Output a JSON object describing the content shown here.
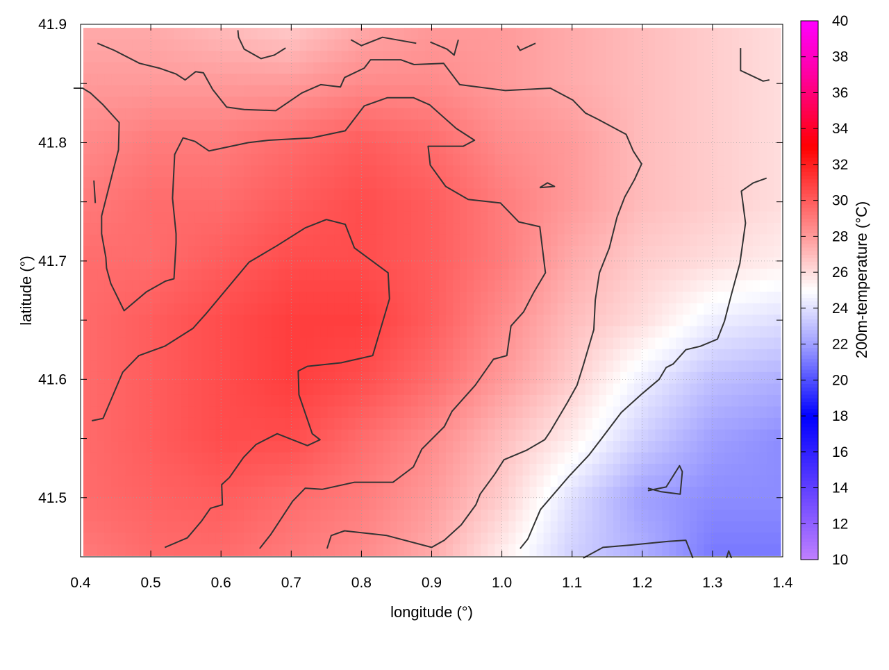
{
  "chart_data": {
    "type": "heatmap",
    "title": "",
    "xlabel": "longitude (°)",
    "ylabel": "latitude (°)",
    "colorbar_label": "200m-temperature (°C)",
    "xlim": [
      0.4,
      1.4
    ],
    "ylim": [
      41.45,
      41.9
    ],
    "x_ticks": [
      "0.4",
      "0.5",
      "0.6",
      "0.7",
      "0.8",
      "0.9",
      "1.0",
      "1.1",
      "1.2",
      "1.3",
      "1.4"
    ],
    "y_ticks": [
      "41.5",
      "41.6",
      "41.7",
      "41.8",
      "41.9"
    ],
    "colorbar_range": [
      10,
      40
    ],
    "colorbar_ticks": [
      "10",
      "12",
      "14",
      "16",
      "18",
      "20",
      "22",
      "24",
      "26",
      "28",
      "30",
      "32",
      "34",
      "36",
      "38",
      "40"
    ],
    "grid": true,
    "colormap": [
      {
        "value": 10,
        "color": "#c080ff"
      },
      {
        "value": 14,
        "color": "#6040ff"
      },
      {
        "value": 18,
        "color": "#0000ff"
      },
      {
        "value": 22,
        "color": "#a0a0ff"
      },
      {
        "value": 25,
        "color": "#ffffff"
      },
      {
        "value": 28,
        "color": "#ff9a9a"
      },
      {
        "value": 33,
        "color": "#ff0000"
      },
      {
        "value": 37,
        "color": "#ff00a0"
      },
      {
        "value": 40,
        "color": "#ff00ff"
      }
    ],
    "field_grid": {
      "x": [
        0.4,
        0.5,
        0.6,
        0.7,
        0.8,
        0.9,
        1.0,
        1.1,
        1.2,
        1.3,
        1.4
      ],
      "y": [
        41.45,
        41.5,
        41.55,
        41.6,
        41.65,
        41.7,
        41.75,
        41.8,
        41.85,
        41.9
      ],
      "z": [
        [
          29.0,
          29.5,
          29.5,
          29.0,
          28.5,
          27.5,
          25.5,
          23.5,
          22.5,
          21.0,
          21.0
        ],
        [
          29.5,
          29.8,
          30.0,
          29.5,
          29.0,
          28.0,
          26.5,
          24.0,
          22.0,
          21.5,
          21.5
        ],
        [
          29.5,
          30.0,
          30.5,
          30.5,
          29.5,
          28.5,
          27.0,
          25.5,
          23.5,
          22.0,
          21.5
        ],
        [
          29.5,
          30.0,
          30.5,
          31.0,
          30.5,
          29.5,
          28.0,
          26.5,
          24.5,
          23.0,
          22.5
        ],
        [
          29.5,
          30.0,
          30.5,
          31.0,
          31.0,
          30.0,
          28.5,
          27.0,
          26.0,
          24.5,
          24.0
        ],
        [
          29.5,
          29.5,
          30.0,
          30.5,
          30.5,
          30.0,
          29.0,
          27.5,
          26.5,
          26.0,
          25.5
        ],
        [
          29.0,
          29.5,
          29.5,
          30.0,
          30.5,
          30.0,
          29.0,
          28.0,
          27.0,
          26.5,
          26.0
        ],
        [
          28.5,
          29.0,
          29.0,
          29.5,
          30.0,
          29.5,
          28.5,
          28.0,
          27.0,
          26.5,
          26.0
        ],
        [
          28.0,
          28.0,
          28.0,
          28.0,
          28.5,
          28.5,
          28.0,
          27.5,
          27.0,
          26.5,
          26.0
        ],
        [
          27.5,
          27.5,
          27.0,
          26.5,
          27.5,
          28.0,
          28.0,
          27.5,
          27.0,
          26.5,
          26.0
        ]
      ]
    },
    "contours": [
      {
        "name": "c1",
        "points": [
          [
            0.416,
            41.565
          ],
          [
            0.432,
            41.567
          ],
          [
            0.46,
            41.606
          ],
          [
            0.483,
            41.62
          ],
          [
            0.52,
            41.628
          ],
          [
            0.56,
            41.643
          ],
          [
            0.578,
            41.655
          ],
          [
            0.64,
            41.699
          ],
          [
            0.68,
            41.713
          ],
          [
            0.72,
            41.728
          ],
          [
            0.75,
            41.735
          ],
          [
            0.777,
            41.731
          ],
          [
            0.79,
            41.711
          ],
          [
            0.838,
            41.69
          ],
          [
            0.84,
            41.668
          ],
          [
            0.816,
            41.62
          ],
          [
            0.771,
            41.614
          ],
          [
            0.723,
            41.611
          ],
          [
            0.71,
            41.607
          ],
          [
            0.711,
            41.587
          ],
          [
            0.73,
            41.554
          ],
          [
            0.741,
            41.549
          ],
          [
            0.723,
            41.544
          ],
          [
            0.68,
            41.554
          ],
          [
            0.65,
            41.545
          ],
          [
            0.632,
            41.534
          ],
          [
            0.612,
            41.517
          ],
          [
            0.601,
            41.511
          ],
          [
            0.602,
            41.494
          ],
          [
            0.585,
            41.491
          ],
          [
            0.572,
            41.48
          ],
          [
            0.552,
            41.466
          ],
          [
            0.52,
            41.458
          ]
        ]
      },
      {
        "name": "c2",
        "points": [
          [
            0.655,
            41.457
          ],
          [
            0.671,
            41.469
          ],
          [
            0.702,
            41.497
          ],
          [
            0.72,
            41.508
          ],
          [
            0.744,
            41.507
          ],
          [
            0.79,
            41.513
          ],
          [
            0.845,
            41.513
          ],
          [
            0.874,
            41.526
          ],
          [
            0.886,
            41.541
          ],
          [
            0.918,
            41.56
          ],
          [
            0.929,
            41.573
          ],
          [
            0.962,
            41.595
          ],
          [
            0.988,
            41.617
          ],
          [
            1.007,
            41.62
          ],
          [
            1.013,
            41.645
          ],
          [
            1.031,
            41.657
          ],
          [
            1.045,
            41.673
          ],
          [
            1.062,
            41.69
          ],
          [
            1.054,
            41.729
          ],
          [
            1.024,
            41.733
          ],
          [
            0.998,
            41.749
          ],
          [
            0.952,
            41.752
          ],
          [
            0.92,
            41.763
          ],
          [
            0.898,
            41.781
          ],
          [
            0.895,
            41.797
          ],
          [
            0.923,
            41.797
          ],
          [
            0.945,
            41.797
          ],
          [
            0.961,
            41.802
          ],
          [
            0.935,
            41.812
          ],
          [
            0.897,
            41.832
          ],
          [
            0.874,
            41.838
          ],
          [
            0.837,
            41.838
          ],
          [
            0.804,
            41.831
          ],
          [
            0.777,
            41.81
          ],
          [
            0.729,
            41.804
          ],
          [
            0.668,
            41.802
          ],
          [
            0.639,
            41.8
          ],
          [
            0.583,
            41.793
          ],
          [
            0.563,
            41.801
          ],
          [
            0.546,
            41.804
          ],
          [
            0.534,
            41.79
          ],
          [
            0.531,
            41.753
          ],
          [
            0.536,
            41.723
          ],
          [
            0.536,
            41.715
          ],
          [
            0.533,
            41.685
          ],
          [
            0.521,
            41.683
          ],
          [
            0.494,
            41.674
          ],
          [
            0.462,
            41.658
          ],
          [
            0.443,
            41.681
          ],
          [
            0.437,
            41.694
          ],
          [
            0.436,
            41.703
          ],
          [
            0.43,
            41.723
          ],
          [
            0.43,
            41.738
          ],
          [
            0.448,
            41.78
          ],
          [
            0.454,
            41.794
          ],
          [
            0.455,
            41.817
          ],
          [
            0.432,
            41.832
          ],
          [
            0.414,
            41.842
          ],
          [
            0.403,
            41.846
          ],
          [
            0.39,
            41.846
          ]
        ]
      },
      {
        "name": "c3",
        "points": [
          [
            0.419,
            41.768
          ],
          [
            0.421,
            41.749
          ]
        ]
      },
      {
        "name": "c4",
        "points": [
          [
            0.751,
            41.457
          ],
          [
            0.757,
            41.468
          ],
          [
            0.776,
            41.472
          ],
          [
            0.836,
            41.468
          ],
          [
            0.9,
            41.458
          ],
          [
            0.918,
            41.464
          ],
          [
            0.942,
            41.477
          ],
          [
            0.963,
            41.494
          ],
          [
            0.969,
            41.503
          ],
          [
            0.99,
            41.52
          ],
          [
            1.003,
            41.532
          ],
          [
            1.035,
            41.54
          ],
          [
            1.061,
            41.549
          ],
          [
            1.069,
            41.556
          ],
          [
            1.093,
            41.58
          ],
          [
            1.107,
            41.595
          ],
          [
            1.116,
            41.612
          ],
          [
            1.131,
            41.642
          ],
          [
            1.133,
            41.667
          ],
          [
            1.139,
            41.69
          ],
          [
            1.153,
            41.711
          ],
          [
            1.164,
            41.737
          ],
          [
            1.175,
            41.754
          ],
          [
            1.189,
            41.769
          ],
          [
            1.199,
            41.782
          ],
          [
            1.187,
            41.793
          ],
          [
            1.177,
            41.807
          ],
          [
            1.136,
            41.82
          ],
          [
            1.119,
            41.825
          ],
          [
            1.101,
            41.836
          ],
          [
            1.069,
            41.846
          ],
          [
            1.005,
            41.844
          ],
          [
            0.94,
            41.849
          ],
          [
            0.917,
            41.867
          ],
          [
            0.875,
            41.866
          ],
          [
            0.856,
            41.87
          ],
          [
            0.83,
            41.87
          ],
          [
            0.813,
            41.87
          ],
          [
            0.804,
            41.863
          ],
          [
            0.776,
            41.855
          ],
          [
            0.77,
            41.847
          ],
          [
            0.742,
            41.849
          ],
          [
            0.715,
            41.842
          ],
          [
            0.678,
            41.827
          ],
          [
            0.633,
            41.828
          ],
          [
            0.608,
            41.83
          ],
          [
            0.588,
            41.845
          ],
          [
            0.575,
            41.859
          ],
          [
            0.564,
            41.86
          ],
          [
            0.549,
            41.853
          ],
          [
            0.536,
            41.858
          ],
          [
            0.512,
            41.863
          ],
          [
            0.484,
            41.867
          ],
          [
            0.448,
            41.878
          ],
          [
            0.424,
            41.884
          ]
        ]
      },
      {
        "name": "c5",
        "points": [
          [
            1.054,
            41.762
          ],
          [
            1.075,
            41.763
          ],
          [
            1.065,
            41.766
          ],
          [
            1.054,
            41.762
          ]
        ]
      },
      {
        "name": "c6",
        "points": [
          [
            0.624,
            41.895
          ],
          [
            0.625,
            41.889
          ],
          [
            0.633,
            41.879
          ],
          [
            0.657,
            41.871
          ],
          [
            0.676,
            41.874
          ],
          [
            0.692,
            41.88
          ]
        ]
      },
      {
        "name": "c7",
        "points": [
          [
            0.785,
            41.887
          ],
          [
            0.8,
            41.882
          ],
          [
            0.83,
            41.889
          ],
          [
            0.878,
            41.884
          ]
        ]
      },
      {
        "name": "c8",
        "points": [
          [
            0.898,
            41.885
          ],
          [
            0.922,
            41.879
          ],
          [
            0.932,
            41.874
          ],
          [
            0.938,
            41.887
          ]
        ]
      },
      {
        "name": "c9",
        "points": [
          [
            1.022,
            41.882
          ],
          [
            1.026,
            41.878
          ],
          [
            1.048,
            41.884
          ]
        ]
      },
      {
        "name": "c10",
        "points": [
          [
            1.34,
            41.88
          ],
          [
            1.34,
            41.861
          ],
          [
            1.372,
            41.852
          ],
          [
            1.381,
            41.853
          ]
        ]
      },
      {
        "name": "c11",
        "points": [
          [
            1.026,
            41.457
          ],
          [
            1.037,
            41.465
          ],
          [
            1.055,
            41.49
          ],
          [
            1.097,
            41.519
          ],
          [
            1.124,
            41.536
          ],
          [
            1.142,
            41.55
          ],
          [
            1.17,
            41.572
          ],
          [
            1.2,
            41.588
          ],
          [
            1.224,
            41.6
          ],
          [
            1.234,
            41.61
          ],
          [
            1.244,
            41.613
          ],
          [
            1.262,
            41.625
          ],
          [
            1.283,
            41.628
          ],
          [
            1.307,
            41.634
          ],
          [
            1.317,
            41.649
          ],
          [
            1.327,
            41.672
          ],
          [
            1.339,
            41.698
          ],
          [
            1.347,
            41.732
          ],
          [
            1.341,
            41.759
          ],
          [
            1.358,
            41.766
          ],
          [
            1.377,
            41.77
          ]
        ]
      },
      {
        "name": "c12",
        "points": [
          [
            1.116,
            41.449
          ],
          [
            1.144,
            41.458
          ],
          [
            1.184,
            41.46
          ],
          [
            1.237,
            41.463
          ],
          [
            1.262,
            41.464
          ],
          [
            1.272,
            41.449
          ]
        ]
      },
      {
        "name": "c13",
        "points": [
          [
            1.208,
            41.508
          ],
          [
            1.227,
            41.505
          ],
          [
            1.254,
            41.503
          ],
          [
            1.257,
            41.522
          ],
          [
            1.253,
            41.527
          ],
          [
            1.234,
            41.509
          ],
          [
            1.208,
            41.506
          ]
        ]
      },
      {
        "name": "c14",
        "points": [
          [
            1.32,
            41.449
          ],
          [
            1.323,
            41.455
          ],
          [
            1.327,
            41.449
          ]
        ]
      }
    ]
  }
}
